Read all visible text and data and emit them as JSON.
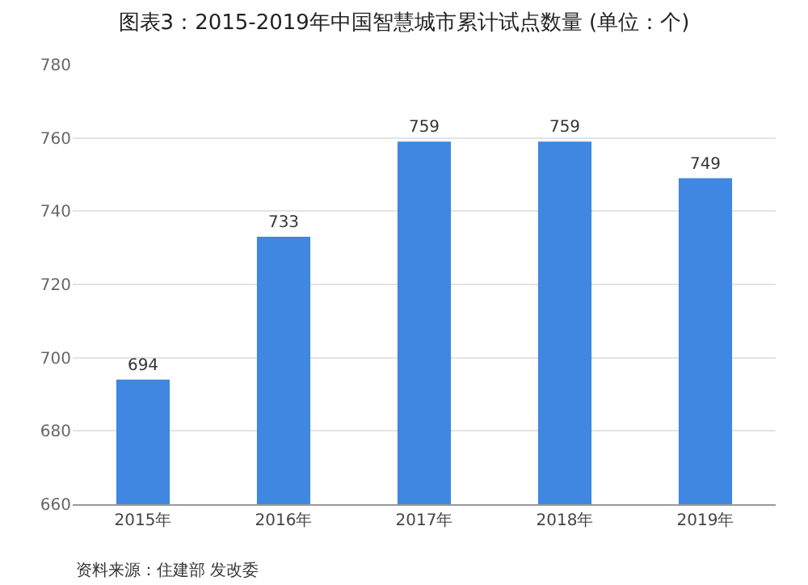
{
  "chart_data": {
    "type": "bar",
    "title": "图表3：2015-2019年中国智慧城市累计试点数量 (单位：个)",
    "categories": [
      "2015年",
      "2016年",
      "2017年",
      "2018年",
      "2019年"
    ],
    "values": [
      694,
      733,
      759,
      759,
      749
    ],
    "color": "#3f87e0",
    "ylim": [
      660,
      780
    ],
    "yticks": [
      660,
      680,
      700,
      720,
      740,
      760,
      780
    ],
    "grid": "y",
    "data_labels": true,
    "annotations": [
      "资料来源：住建部 发改委"
    ]
  }
}
